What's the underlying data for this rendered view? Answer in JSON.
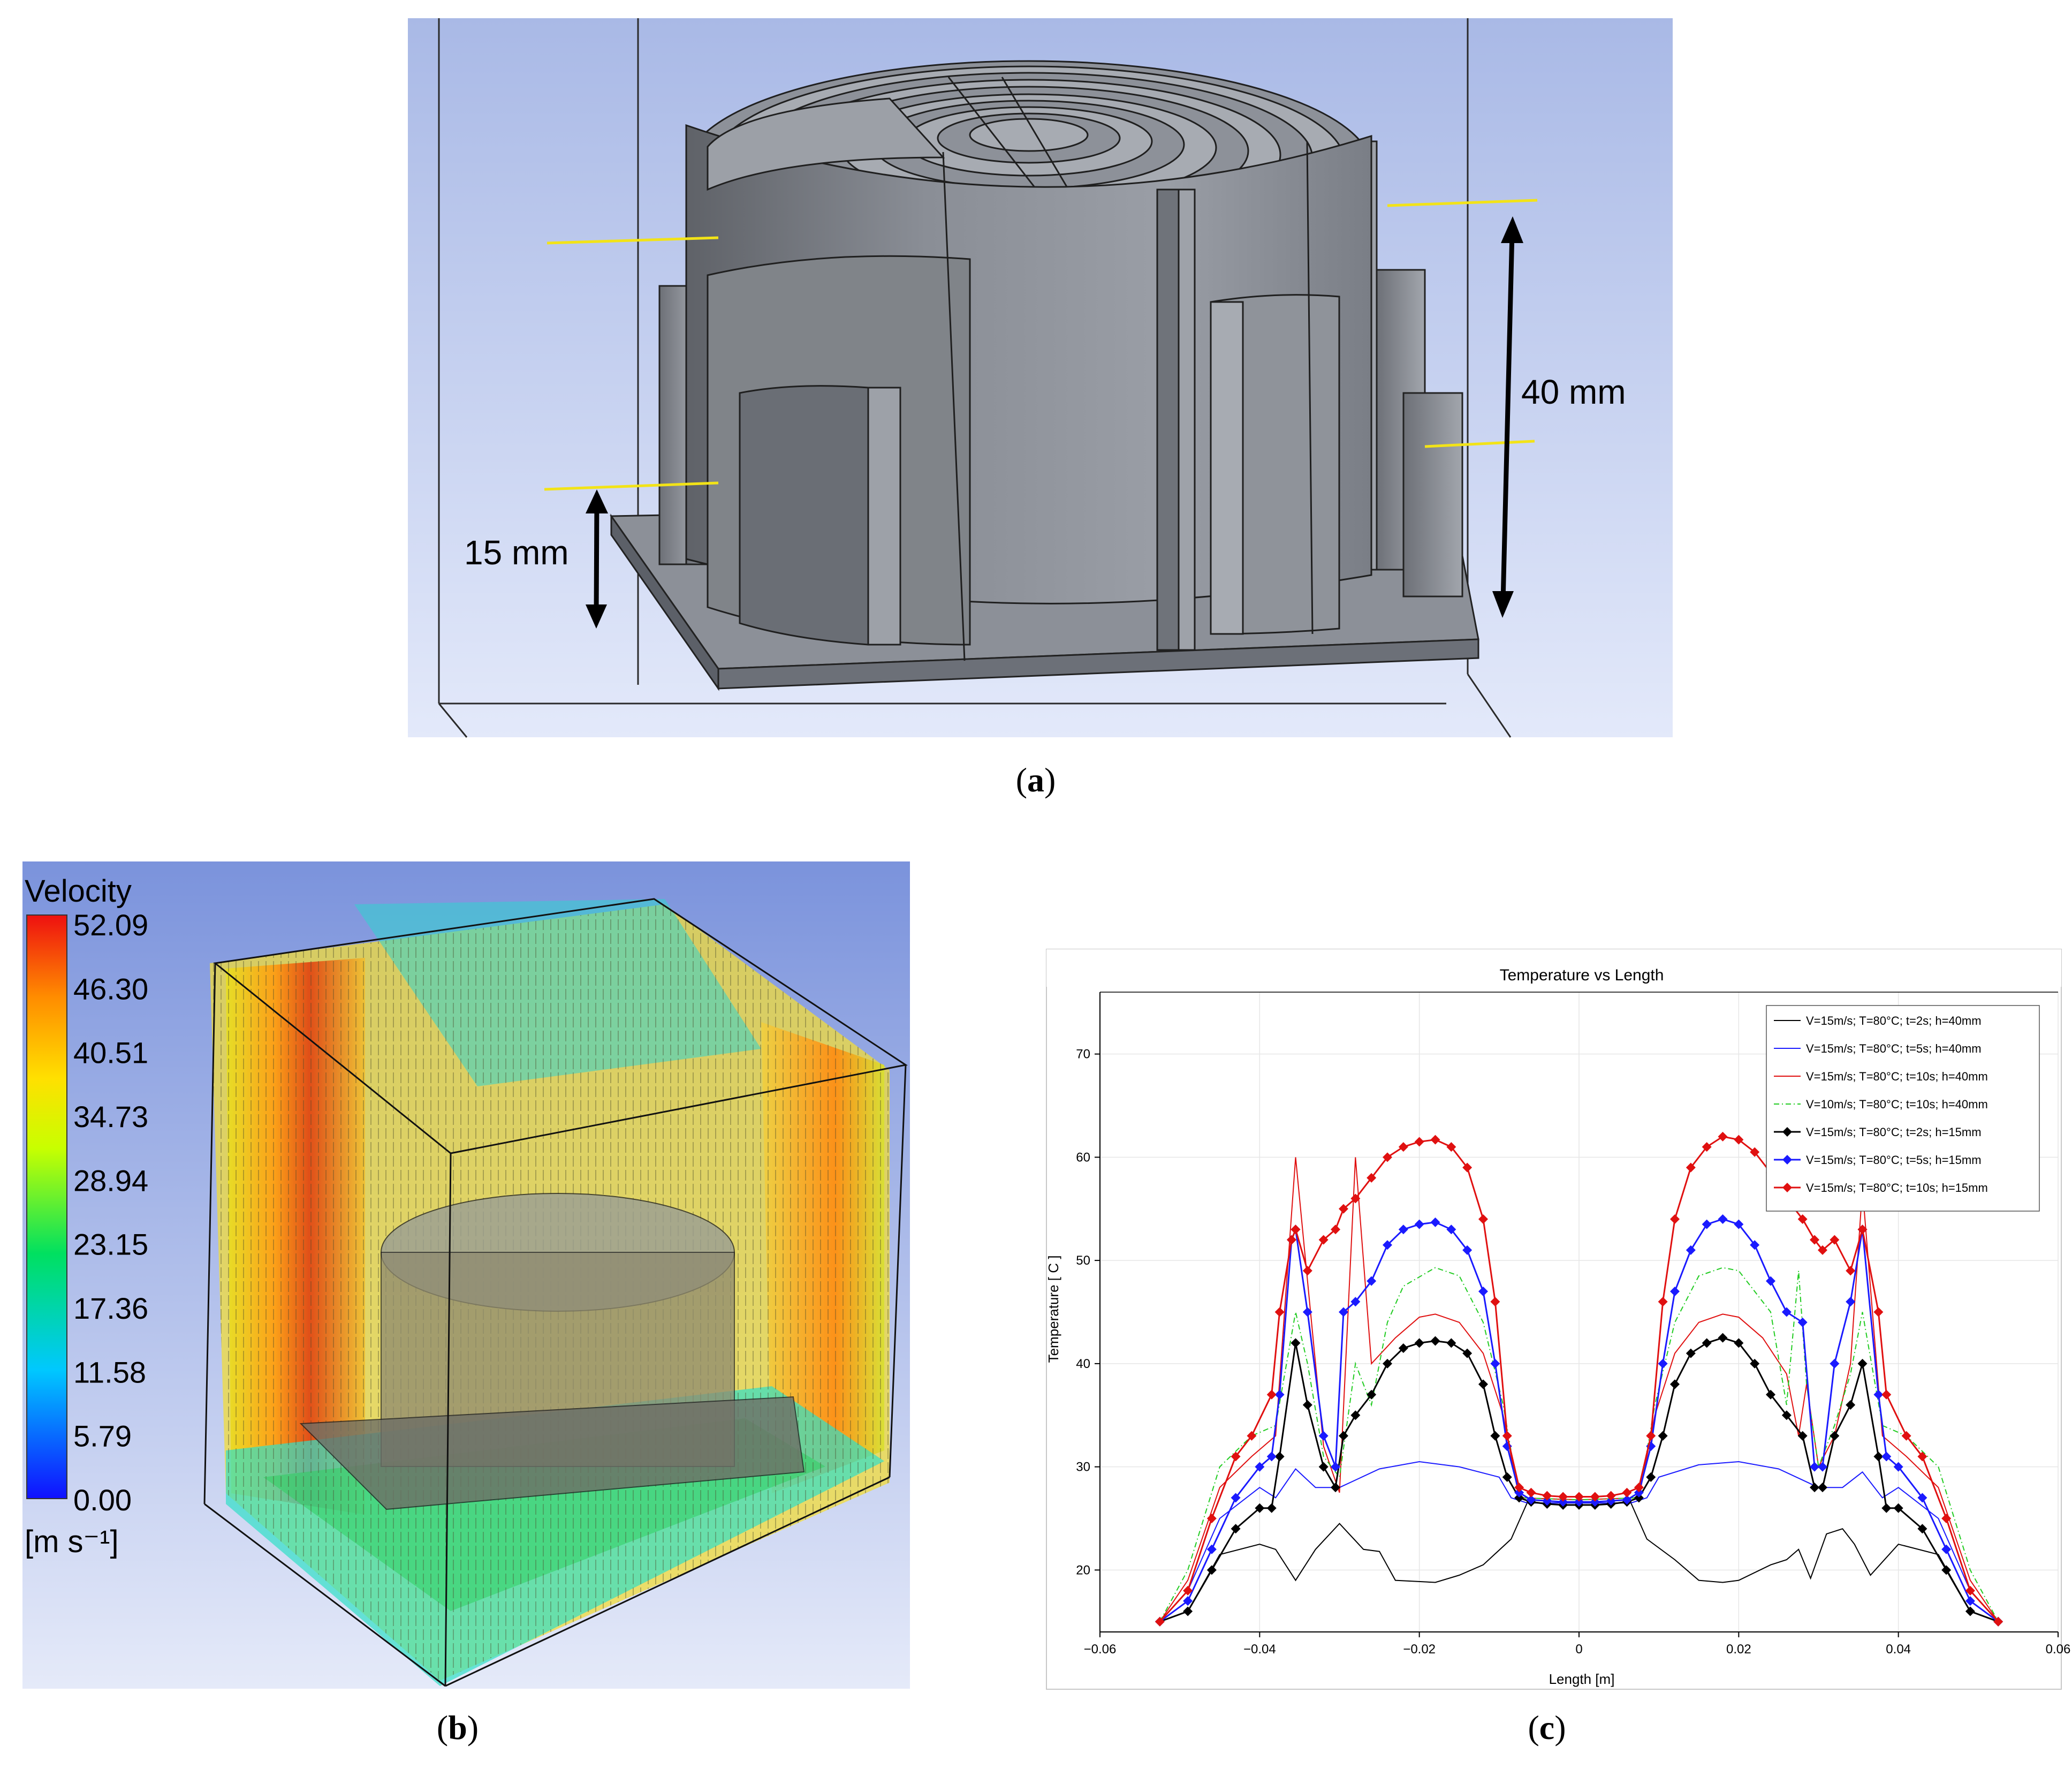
{
  "figure": {
    "panel_a": {
      "caption_letter": "a",
      "dim_40": "40 mm",
      "dim_15": "15 mm"
    },
    "panel_b": {
      "caption_letter": "b",
      "legend_title": "Velocity",
      "legend_unit": "[m s⁻¹]",
      "legend_ticks": [
        "52.09",
        "46.30",
        "40.51",
        "34.73",
        "28.94",
        "23.15",
        "17.36",
        "11.58",
        "5.79",
        "0.00"
      ]
    },
    "panel_c": {
      "caption_letter": "c"
    }
  },
  "chart_data": {
    "type": "line",
    "title": "Temperature vs Length",
    "xlabel": "Length [m]",
    "ylabel": "Temperature [ C ]",
    "xlim": [
      -0.06,
      0.06
    ],
    "ylim": [
      14,
      76
    ],
    "xticks": [
      -0.06,
      -0.04,
      -0.02,
      0,
      0.02,
      0.04,
      0.06
    ],
    "xtick_labels": [
      "−0.06",
      "−0.04",
      "−0.02",
      "0",
      "0.02",
      "0.04",
      "0.06"
    ],
    "yticks": [
      20,
      30,
      40,
      50,
      60,
      70
    ],
    "ytick_labels": [
      "20",
      "30",
      "40",
      "50",
      "60",
      "70"
    ],
    "grid": true,
    "legend_position": "top-right",
    "series": [
      {
        "name": "V=15m/s; T=80°C; t=2s; h=40mm",
        "color": "#000000",
        "marker": "none",
        "dash": "solid",
        "x": [
          -0.0525,
          -0.049,
          -0.045,
          -0.04,
          -0.038,
          -0.0355,
          -0.033,
          -0.03,
          -0.027,
          -0.025,
          -0.023,
          -0.018,
          -0.015,
          -0.012,
          -0.0085,
          -0.0065,
          0,
          0.0065,
          0.0085,
          0.012,
          0.015,
          0.018,
          0.02,
          0.024,
          0.026,
          0.0275,
          0.029,
          0.031,
          0.033,
          0.0345,
          0.0365,
          0.04,
          0.045,
          0.049,
          0.0525
        ],
        "y": [
          15,
          16,
          21.5,
          22.5,
          22,
          19,
          22,
          24.5,
          22,
          21.8,
          19,
          18.8,
          19.5,
          20.5,
          23,
          26.5,
          26.5,
          26.5,
          23,
          21,
          19,
          18.8,
          19,
          20.5,
          21,
          22,
          19.2,
          23.5,
          24,
          22.5,
          19.5,
          22.5,
          21.5,
          16,
          15
        ]
      },
      {
        "name": "V=15m/s; T=80°C; t=5s; h=40mm",
        "color": "#1a1aff",
        "marker": "none",
        "dash": "solid",
        "x": [
          -0.0525,
          -0.049,
          -0.045,
          -0.04,
          -0.038,
          -0.0355,
          -0.033,
          -0.03,
          -0.025,
          -0.02,
          -0.015,
          -0.01,
          -0.0085,
          -0.0065,
          0,
          0.0065,
          0.0085,
          0.01,
          0.015,
          0.02,
          0.025,
          0.03,
          0.033,
          0.0355,
          0.038,
          0.04,
          0.045,
          0.049,
          0.0525
        ],
        "y": [
          15,
          18,
          25,
          28,
          27,
          29.8,
          28,
          28,
          29.8,
          30.5,
          30,
          29,
          27,
          26.5,
          26.5,
          26.5,
          27,
          29,
          30.2,
          30.5,
          29.8,
          28,
          28,
          29.5,
          27,
          28,
          25,
          18,
          15
        ]
      },
      {
        "name": "V=15m/s; T=80°C; t=10s; h=40mm",
        "color": "#e01010",
        "marker": "none",
        "dash": "solid",
        "x": [
          -0.0525,
          -0.049,
          -0.045,
          -0.041,
          -0.038,
          -0.0355,
          -0.034,
          -0.032,
          -0.03,
          -0.028,
          -0.026,
          -0.023,
          -0.02,
          -0.018,
          -0.015,
          -0.012,
          -0.0095,
          -0.0075,
          0,
          0.0075,
          0.0095,
          0.012,
          0.015,
          0.018,
          0.02,
          0.023,
          0.026,
          0.0275,
          0.0285,
          0.03,
          0.032,
          0.034,
          0.0355,
          0.038,
          0.041,
          0.045,
          0.049,
          0.0525
        ],
        "y": [
          15,
          19,
          28,
          31,
          33,
          60,
          48,
          32,
          27.5,
          60,
          40,
          42.5,
          44.5,
          44.8,
          44,
          41,
          35,
          27,
          26.8,
          27,
          35,
          41,
          44,
          44.8,
          44.5,
          42.5,
          39,
          33,
          38,
          30,
          33,
          40,
          57,
          33,
          31,
          28,
          19,
          15
        ]
      },
      {
        "name": "V=10m/s; T=80°C; t=10s; h=40mm",
        "color": "#22cc22",
        "marker": "none",
        "dash": "dashdot",
        "x": [
          -0.0525,
          -0.049,
          -0.045,
          -0.041,
          -0.038,
          -0.0355,
          -0.034,
          -0.032,
          -0.03,
          -0.028,
          -0.026,
          -0.024,
          -0.022,
          -0.018,
          -0.015,
          -0.012,
          -0.0095,
          -0.0075,
          0,
          0.0075,
          0.0095,
          0.012,
          0.015,
          0.018,
          0.02,
          0.024,
          0.026,
          0.0275,
          0.0285,
          0.03,
          0.032,
          0.034,
          0.0355,
          0.038,
          0.041,
          0.045,
          0.049,
          0.0525
        ],
        "y": [
          15,
          20,
          30,
          33,
          34,
          45,
          40,
          31,
          29,
          40,
          36,
          44,
          47.5,
          49.3,
          48.5,
          44,
          36,
          27,
          26.8,
          27,
          36,
          44,
          48.5,
          49.3,
          49,
          45,
          36,
          49,
          38,
          30,
          34,
          39,
          45,
          34,
          33,
          30,
          20,
          15
        ]
      },
      {
        "name": "V=15m/s; T=80°C; t=2s; h=15mm",
        "color": "#000000",
        "marker": "diamond",
        "dash": "solid",
        "x": [
          -0.0525,
          -0.049,
          -0.046,
          -0.043,
          -0.04,
          -0.0385,
          -0.0375,
          -0.0355,
          -0.034,
          -0.032,
          -0.0305,
          -0.0295,
          -0.028,
          -0.026,
          -0.024,
          -0.022,
          -0.02,
          -0.018,
          -0.016,
          -0.014,
          -0.012,
          -0.0105,
          -0.009,
          -0.0075,
          -0.006,
          -0.004,
          -0.002,
          0,
          0.002,
          0.004,
          0.006,
          0.0075,
          0.009,
          0.0105,
          0.012,
          0.014,
          0.016,
          0.018,
          0.02,
          0.022,
          0.024,
          0.026,
          0.028,
          0.0295,
          0.0305,
          0.032,
          0.034,
          0.0355,
          0.0375,
          0.0385,
          0.04,
          0.043,
          0.046,
          0.049,
          0.0525
        ],
        "y": [
          15,
          16,
          20,
          24,
          26,
          26,
          31,
          42,
          36,
          30,
          28,
          33,
          35,
          37,
          40,
          41.5,
          42,
          42.2,
          42,
          41,
          38,
          33,
          29,
          27,
          26.6,
          26.4,
          26.3,
          26.3,
          26.3,
          26.4,
          26.6,
          27,
          29,
          33,
          38,
          41,
          42,
          42.5,
          42,
          40,
          37,
          35,
          33,
          28,
          28,
          33,
          36,
          40,
          31,
          26,
          26,
          24,
          20,
          16,
          15
        ]
      },
      {
        "name": "V=15m/s; T=80°C; t=5s; h=15mm",
        "color": "#1a1aff",
        "marker": "diamond",
        "dash": "solid",
        "x": [
          -0.0525,
          -0.049,
          -0.046,
          -0.043,
          -0.04,
          -0.0385,
          -0.0375,
          -0.036,
          -0.0355,
          -0.034,
          -0.032,
          -0.0305,
          -0.0295,
          -0.028,
          -0.026,
          -0.024,
          -0.022,
          -0.02,
          -0.018,
          -0.016,
          -0.014,
          -0.012,
          -0.0105,
          -0.009,
          -0.0075,
          -0.006,
          -0.004,
          -0.002,
          0,
          0.002,
          0.004,
          0.006,
          0.0075,
          0.009,
          0.0105,
          0.012,
          0.014,
          0.016,
          0.018,
          0.02,
          0.022,
          0.024,
          0.026,
          0.028,
          0.0295,
          0.0305,
          0.032,
          0.034,
          0.0355,
          0.0375,
          0.0385,
          0.04,
          0.043,
          0.046,
          0.049,
          0.0525
        ],
        "y": [
          15,
          17,
          22,
          27,
          30,
          31,
          37,
          52,
          53,
          45,
          33,
          30,
          45,
          46,
          48,
          51.5,
          53,
          53.5,
          53.7,
          53,
          51,
          47,
          40,
          32,
          27.5,
          26.8,
          26.7,
          26.6,
          26.6,
          26.6,
          26.7,
          26.8,
          27.5,
          32,
          40,
          47,
          51,
          53.5,
          54,
          53.5,
          51.5,
          48,
          45,
          44,
          30,
          30,
          40,
          46,
          53,
          37,
          31,
          30,
          27,
          22,
          17,
          15
        ]
      },
      {
        "name": "V=15m/s; T=80°C; t=10s; h=15mm",
        "color": "#e01010",
        "marker": "diamond",
        "dash": "solid",
        "x": [
          -0.0525,
          -0.049,
          -0.046,
          -0.043,
          -0.041,
          -0.0385,
          -0.0375,
          -0.036,
          -0.0355,
          -0.034,
          -0.032,
          -0.0305,
          -0.0295,
          -0.028,
          -0.026,
          -0.024,
          -0.022,
          -0.02,
          -0.018,
          -0.016,
          -0.014,
          -0.012,
          -0.0105,
          -0.009,
          -0.0075,
          -0.006,
          -0.004,
          -0.002,
          0,
          0.002,
          0.004,
          0.006,
          0.0075,
          0.009,
          0.0105,
          0.012,
          0.014,
          0.016,
          0.018,
          0.02,
          0.022,
          0.024,
          0.026,
          0.028,
          0.0295,
          0.0305,
          0.032,
          0.034,
          0.0355,
          0.0375,
          0.0385,
          0.041,
          0.043,
          0.046,
          0.049,
          0.0525
        ],
        "y": [
          15,
          18,
          25,
          31,
          33,
          37,
          45,
          52,
          53,
          49,
          52,
          53,
          55,
          56,
          58,
          60,
          61,
          61.5,
          61.7,
          61,
          59,
          54,
          46,
          33,
          28,
          27.5,
          27.2,
          27.1,
          27.1,
          27.1,
          27.2,
          27.5,
          28,
          33,
          46,
          54,
          59,
          61,
          62,
          61.7,
          60.5,
          58.5,
          56,
          54,
          52,
          51,
          52,
          49,
          53,
          45,
          37,
          33,
          31,
          25,
          18,
          15
        ]
      }
    ]
  }
}
